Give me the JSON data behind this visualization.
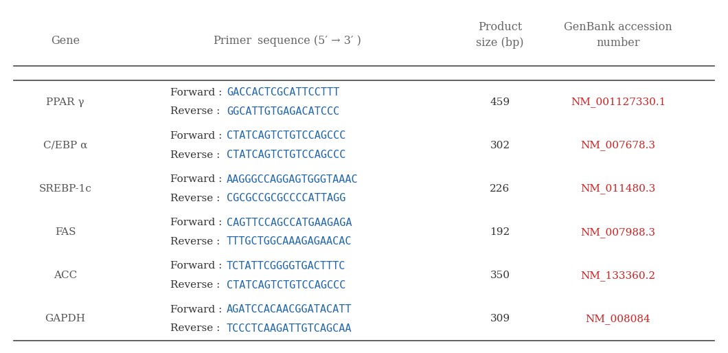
{
  "background_color": "#ffffff",
  "header": {
    "col1": "Gene",
    "col2_part1": "Primer",
    "col2_part2": "sequence (5′ → 3′ )",
    "col3": "Product\nsize (bp)",
    "col4": "GenBank accession\nnumber"
  },
  "rows": [
    {
      "gene": "PPAR γ",
      "forward_seq": "GACCACTCGCATTCCTTT",
      "reverse_seq": "GGCATTGTGAGACATCCC",
      "product_size": "459",
      "accession": "NM_001127330.1"
    },
    {
      "gene": "C/EBP α",
      "forward_seq": "CTATCAGTCTGTCCAGCCC",
      "reverse_seq": "CTATCAGTCTGTCCAGCCC",
      "product_size": "302",
      "accession": "NM_007678.3"
    },
    {
      "gene": "SREBP-1c",
      "forward_seq": "AAGGGCCAGGAGTGGGTAAAC",
      "reverse_seq": "CGCGCCGCGCCCCATTAGG",
      "product_size": "226",
      "accession": "NM_011480.3"
    },
    {
      "gene": "FAS",
      "forward_seq": "CAGTTCCAGCCATGAAGAGA",
      "reverse_seq": "TTTGCTGGCAAAGAGAACAC",
      "product_size": "192",
      "accession": "NM_007988.3"
    },
    {
      "gene": "ACC",
      "forward_seq": "TCTATTCGGGGTGACTTTC",
      "reverse_seq": "CTATCAGTCTGTCCAGCCC",
      "product_size": "350",
      "accession": "NM_133360.2"
    },
    {
      "gene": "GAPDH",
      "forward_seq": "AGATCCACAACGGATACATT",
      "reverse_seq": "TCCCTCAAGATTGTCAGCAA",
      "product_size": "309",
      "accession": "NM_008084"
    }
  ],
  "text_color_gene": "#555555",
  "text_color_seq": "#2266aa",
  "text_color_label": "#333333",
  "text_color_header": "#666666",
  "text_color_size": "#333333",
  "text_color_accession": "#cc2222",
  "font_size_header": 11.5,
  "font_size_body": 11.0
}
